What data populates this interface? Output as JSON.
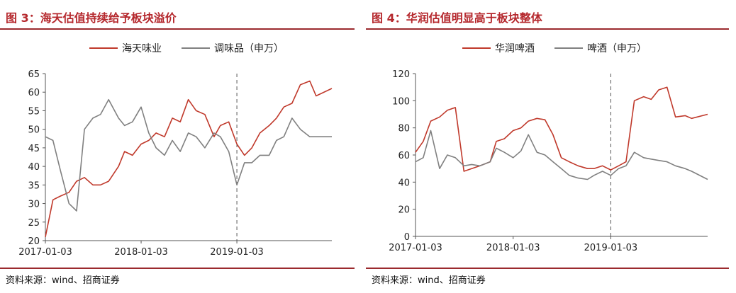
{
  "panels": [
    {
      "title": "图 3：海天估值持续给予板块溢价",
      "source": "资料来源：wind、招商证券",
      "chart_data": {
        "type": "line",
        "title": "图 3：海天估值持续给予板块溢价",
        "xlabel": "",
        "ylabel": "",
        "x_tick_labels": [
          "2017-01-03",
          "2018-01-03",
          "2019-01-03"
        ],
        "x_range": [
          "2017-01-03",
          "2019-12-31"
        ],
        "ylim": [
          20,
          65
        ],
        "yticks": [
          20,
          25,
          30,
          35,
          40,
          45,
          50,
          55,
          60,
          65
        ],
        "grid": false,
        "legend": "top-center",
        "vline": "2019-01-03",
        "series": [
          {
            "name": "海天味业",
            "color": "#c0392b",
            "x": [
              "2017-01-03",
              "2017-02-01",
              "2017-03-01",
              "2017-04-03",
              "2017-05-02",
              "2017-06-01",
              "2017-07-03",
              "2017-08-01",
              "2017-09-01",
              "2017-10-09",
              "2017-11-01",
              "2017-12-01",
              "2018-01-03",
              "2018-02-01",
              "2018-03-01",
              "2018-04-02",
              "2018-05-02",
              "2018-06-01",
              "2018-07-02",
              "2018-08-01",
              "2018-09-03",
              "2018-10-08",
              "2018-11-01",
              "2018-12-03",
              "2019-01-03",
              "2019-02-01",
              "2019-03-01",
              "2019-04-01",
              "2019-05-06",
              "2019-06-03",
              "2019-07-01",
              "2019-08-01",
              "2019-09-02",
              "2019-10-08",
              "2019-11-01",
              "2019-12-31"
            ],
            "values": [
              21,
              31,
              32,
              33,
              36,
              37,
              35,
              35,
              36,
              40,
              44,
              43,
              46,
              47,
              49,
              48,
              53,
              52,
              58,
              55,
              54,
              48,
              51,
              52,
              46,
              43,
              45,
              49,
              51,
              53,
              56,
              57,
              62,
              63,
              59,
              61
            ]
          },
          {
            "name": "调味品（申万）",
            "color": "#808080",
            "x": [
              "2017-01-03",
              "2017-02-01",
              "2017-03-01",
              "2017-04-03",
              "2017-05-02",
              "2017-06-01",
              "2017-07-03",
              "2017-08-01",
              "2017-09-01",
              "2017-10-09",
              "2017-11-01",
              "2017-12-01",
              "2018-01-03",
              "2018-02-01",
              "2018-03-01",
              "2018-04-02",
              "2018-05-02",
              "2018-06-01",
              "2018-07-02",
              "2018-08-01",
              "2018-09-03",
              "2018-10-08",
              "2018-11-01",
              "2018-12-03",
              "2019-01-03",
              "2019-02-01",
              "2019-03-01",
              "2019-04-01",
              "2019-05-06",
              "2019-06-03",
              "2019-07-01",
              "2019-08-01",
              "2019-09-02",
              "2019-10-08",
              "2019-11-01",
              "2019-12-31"
            ],
            "values": [
              48,
              47,
              39,
              30,
              28,
              50,
              53,
              54,
              58,
              53,
              51,
              52,
              56,
              49,
              45,
              43,
              47,
              44,
              49,
              48,
              45,
              49,
              48,
              44,
              35,
              41,
              41,
              43,
              43,
              47,
              48,
              53,
              50,
              48,
              48,
              48
            ]
          }
        ]
      }
    },
    {
      "title": "图 4：华润估值明显高于板块整体",
      "source": "资料来源：wind、招商证券",
      "chart_data": {
        "type": "line",
        "title": "图 4：华润估值明显高于板块整体",
        "xlabel": "",
        "ylabel": "",
        "x_tick_labels": [
          "2017-01-03",
          "2018-01-03",
          "2019-01-03"
        ],
        "x_range": [
          "2017-01-03",
          "2019-12-31"
        ],
        "ylim": [
          0,
          120
        ],
        "yticks": [
          0,
          20,
          40,
          60,
          80,
          100,
          120
        ],
        "grid": false,
        "legend": "top-center",
        "vline": "2019-01-03",
        "series": [
          {
            "name": "华润啤酒",
            "color": "#c0392b",
            "x": [
              "2017-01-03",
              "2017-02-01",
              "2017-03-01",
              "2017-04-03",
              "2017-05-02",
              "2017-06-01",
              "2017-07-03",
              "2017-08-01",
              "2017-09-01",
              "2017-10-09",
              "2017-11-01",
              "2017-12-01",
              "2018-01-03",
              "2018-02-01",
              "2018-03-01",
              "2018-04-02",
              "2018-05-02",
              "2018-06-01",
              "2018-07-02",
              "2018-08-01",
              "2018-09-03",
              "2018-10-08",
              "2018-11-01",
              "2018-12-03",
              "2019-01-03",
              "2019-02-01",
              "2019-03-01",
              "2019-04-01",
              "2019-05-06",
              "2019-06-03",
              "2019-07-01",
              "2019-08-01",
              "2019-09-02",
              "2019-10-08",
              "2019-11-01",
              "2019-12-31"
            ],
            "values": [
              62,
              70,
              85,
              88,
              93,
              95,
              48,
              50,
              52,
              55,
              70,
              72,
              78,
              80,
              85,
              87,
              86,
              75,
              58,
              55,
              52,
              50,
              50,
              52,
              49,
              52,
              55,
              100,
              103,
              101,
              108,
              110,
              88,
              89,
              87,
              90
            ]
          },
          {
            "name": "啤酒（申万）",
            "color": "#808080",
            "x": [
              "2017-01-03",
              "2017-02-01",
              "2017-03-01",
              "2017-04-03",
              "2017-05-02",
              "2017-06-01",
              "2017-07-03",
              "2017-08-01",
              "2017-09-01",
              "2017-10-09",
              "2017-11-01",
              "2017-12-01",
              "2018-01-03",
              "2018-02-01",
              "2018-03-01",
              "2018-04-02",
              "2018-05-02",
              "2018-06-01",
              "2018-07-02",
              "2018-08-01",
              "2018-09-03",
              "2018-10-08",
              "2018-11-01",
              "2018-12-03",
              "2019-01-03",
              "2019-02-01",
              "2019-03-01",
              "2019-04-01",
              "2019-05-06",
              "2019-06-03",
              "2019-07-01",
              "2019-08-01",
              "2019-09-02",
              "2019-10-08",
              "2019-11-01",
              "2019-12-31"
            ],
            "values": [
              55,
              58,
              78,
              50,
              60,
              58,
              52,
              53,
              52,
              55,
              65,
              62,
              58,
              63,
              75,
              62,
              60,
              55,
              50,
              45,
              43,
              42,
              45,
              48,
              45,
              50,
              52,
              62,
              58,
              57,
              56,
              55,
              52,
              50,
              48,
              42
            ]
          }
        ]
      }
    }
  ]
}
